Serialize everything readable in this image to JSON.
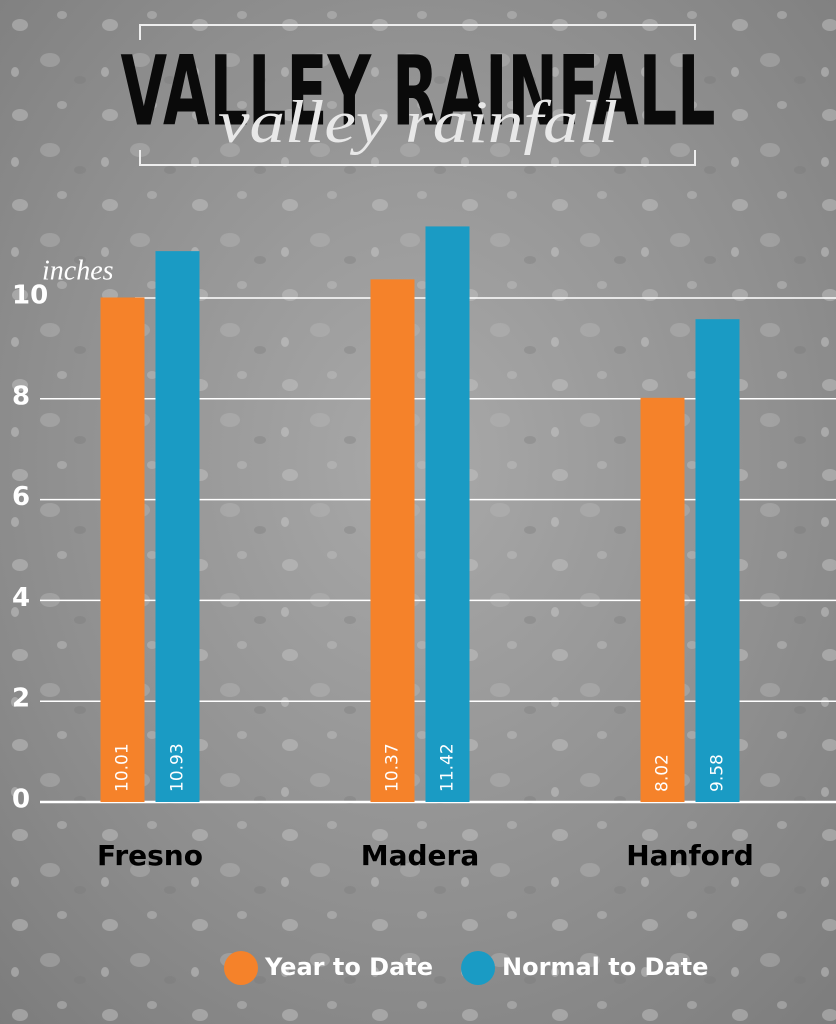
{
  "chart_data": {
    "type": "bar",
    "title": "VALLEY RAINFALL",
    "subtitle": "valley rainfall",
    "ylabel": "inches",
    "categories": [
      "Fresno",
      "Madera",
      "Hanford"
    ],
    "series": [
      {
        "name": "Year to Date",
        "color": "#f5822a",
        "values": [
          10.01,
          10.37,
          8.02
        ]
      },
      {
        "name": "Normal to Date",
        "color": "#1a9bc4",
        "values": [
          10.93,
          11.42,
          9.58
        ]
      }
    ],
    "ylim": [
      0,
      12
    ],
    "yticks": [
      0,
      2,
      4,
      6,
      8,
      10
    ],
    "grid": true
  }
}
